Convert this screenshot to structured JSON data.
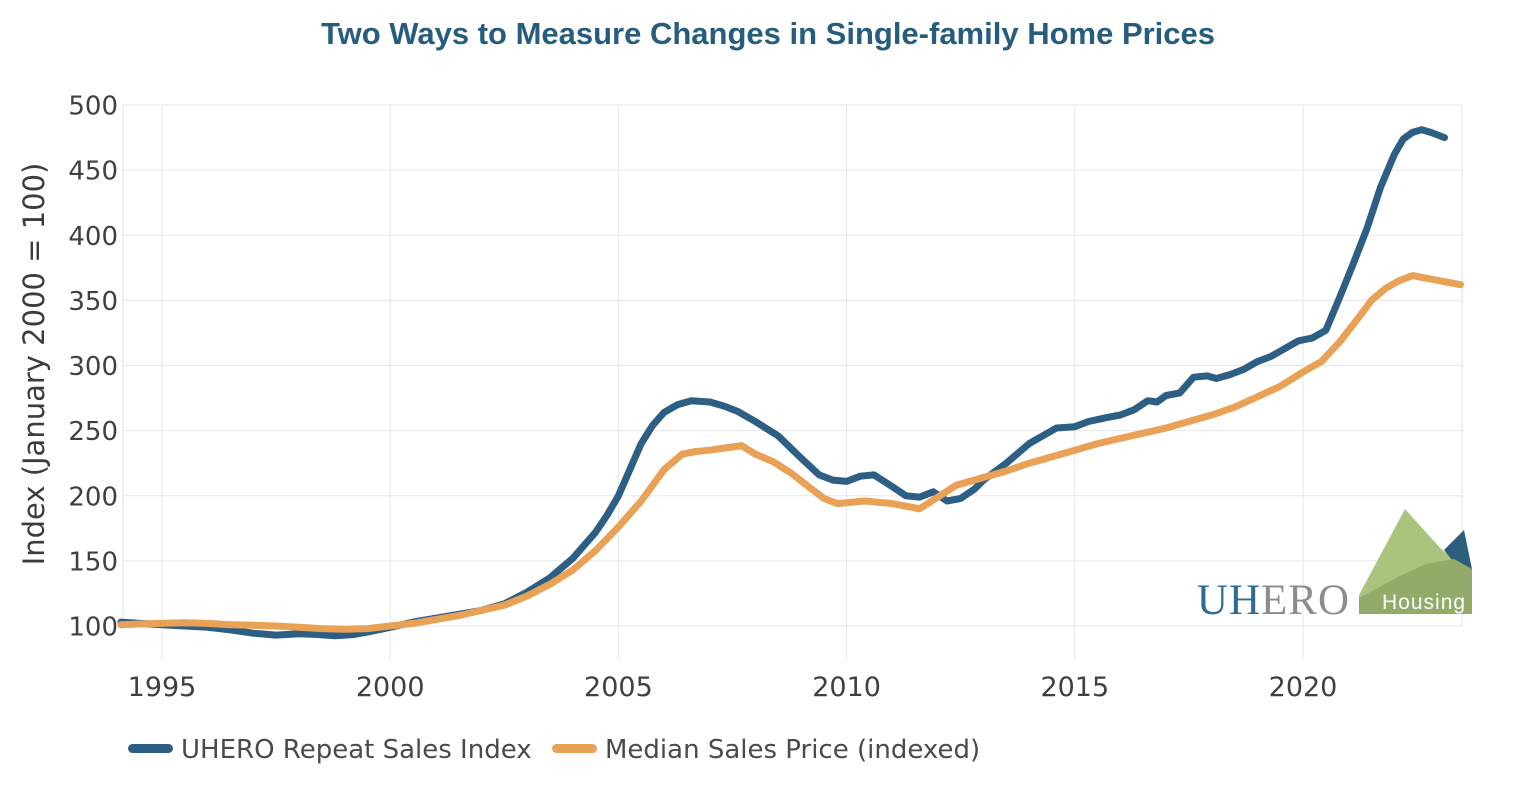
{
  "colors": {
    "title": "#265d7f",
    "repeat_sales_line": "#2d5f85",
    "median_price_line": "#e8a155"
  },
  "logo": {
    "wordmark_blue": "UH",
    "wordmark_gray": "ERO",
    "tag": "Housing",
    "colors": {
      "wordmark_blue": "#2f6b93",
      "wordmark_gray": "#8c8c8c",
      "light_green": "#aac47d",
      "sage_green": "#92ab68",
      "blue_peak": "#2e5e7f"
    }
  },
  "chart_data": {
    "type": "line",
    "title": "Two Ways to Measure Changes in Single-family Home Prices",
    "xlabel": "",
    "ylabel": "Index (January 2000 = 100)",
    "xlim": [
      1994.1,
      2023.6
    ],
    "ylim": [
      100,
      500
    ],
    "xticks": [
      1995,
      2000,
      2005,
      2010,
      2015,
      2020
    ],
    "yticks": [
      100,
      150,
      200,
      250,
      300,
      350,
      400,
      450,
      500
    ],
    "grid": true,
    "legend_position": "bottom-left",
    "series": [
      {
        "name": "UHERO Repeat Sales Index",
        "color": "#2d5f85",
        "points": [
          [
            1994.1,
            103
          ],
          [
            1994.5,
            102
          ],
          [
            1995.0,
            101
          ],
          [
            1995.5,
            100
          ],
          [
            1996.0,
            99
          ],
          [
            1996.5,
            97
          ],
          [
            1997.0,
            94.5
          ],
          [
            1997.5,
            93
          ],
          [
            1998.0,
            94
          ],
          [
            1998.4,
            93.5
          ],
          [
            1998.8,
            92.5
          ],
          [
            1999.2,
            93.5
          ],
          [
            1999.6,
            96
          ],
          [
            2000.0,
            99
          ],
          [
            2000.5,
            103
          ],
          [
            2001.0,
            106
          ],
          [
            2001.5,
            109
          ],
          [
            2002.0,
            112
          ],
          [
            2002.5,
            117
          ],
          [
            2003.0,
            126
          ],
          [
            2003.5,
            137
          ],
          [
            2004.0,
            152
          ],
          [
            2004.5,
            172
          ],
          [
            2004.75,
            185
          ],
          [
            2005.0,
            200
          ],
          [
            2005.25,
            220
          ],
          [
            2005.5,
            240
          ],
          [
            2005.75,
            254
          ],
          [
            2006.0,
            264
          ],
          [
            2006.3,
            270
          ],
          [
            2006.6,
            273
          ],
          [
            2007.0,
            272
          ],
          [
            2007.3,
            269
          ],
          [
            2007.6,
            265
          ],
          [
            2008.0,
            257
          ],
          [
            2008.5,
            246
          ],
          [
            2009.0,
            229
          ],
          [
            2009.4,
            216
          ],
          [
            2009.7,
            212
          ],
          [
            2010.0,
            211
          ],
          [
            2010.3,
            215
          ],
          [
            2010.6,
            216
          ],
          [
            2011.0,
            207
          ],
          [
            2011.3,
            200
          ],
          [
            2011.6,
            199
          ],
          [
            2011.9,
            203
          ],
          [
            2012.2,
            196
          ],
          [
            2012.5,
            198
          ],
          [
            2012.8,
            205
          ],
          [
            2013.0,
            212
          ],
          [
            2013.5,
            225
          ],
          [
            2014.0,
            240
          ],
          [
            2014.6,
            252
          ],
          [
            2015.0,
            253
          ],
          [
            2015.3,
            257
          ],
          [
            2015.7,
            260
          ],
          [
            2016.0,
            262
          ],
          [
            2016.3,
            266
          ],
          [
            2016.6,
            273
          ],
          [
            2016.8,
            272
          ],
          [
            2017.0,
            277
          ],
          [
            2017.3,
            279
          ],
          [
            2017.6,
            291
          ],
          [
            2017.9,
            292
          ],
          [
            2018.1,
            290
          ],
          [
            2018.4,
            293
          ],
          [
            2018.7,
            297
          ],
          [
            2019.0,
            303
          ],
          [
            2019.3,
            307
          ],
          [
            2019.6,
            313
          ],
          [
            2019.9,
            319
          ],
          [
            2020.2,
            321
          ],
          [
            2020.5,
            327
          ],
          [
            2020.8,
            352
          ],
          [
            2021.1,
            378
          ],
          [
            2021.4,
            405
          ],
          [
            2021.7,
            437
          ],
          [
            2022.0,
            462
          ],
          [
            2022.2,
            474
          ],
          [
            2022.4,
            479
          ],
          [
            2022.6,
            481
          ],
          [
            2022.8,
            479
          ],
          [
            2023.1,
            475
          ]
        ]
      },
      {
        "name": "Median Sales Price (indexed)",
        "color": "#e8a155",
        "points": [
          [
            1994.1,
            101
          ],
          [
            1994.5,
            101.5
          ],
          [
            1995.0,
            102
          ],
          [
            1995.5,
            102.5
          ],
          [
            1996.0,
            102
          ],
          [
            1996.5,
            101
          ],
          [
            1997.0,
            100.5
          ],
          [
            1997.5,
            100
          ],
          [
            1998.0,
            99
          ],
          [
            1998.5,
            98
          ],
          [
            1999.0,
            97.5
          ],
          [
            1999.5,
            98
          ],
          [
            2000.0,
            100
          ],
          [
            2000.5,
            102
          ],
          [
            2001.0,
            105
          ],
          [
            2001.5,
            108
          ],
          [
            2002.0,
            112
          ],
          [
            2002.5,
            116
          ],
          [
            2003.0,
            123
          ],
          [
            2003.5,
            132
          ],
          [
            2004.0,
            143
          ],
          [
            2004.5,
            158
          ],
          [
            2005.0,
            176
          ],
          [
            2005.5,
            196
          ],
          [
            2006.0,
            220
          ],
          [
            2006.4,
            232
          ],
          [
            2006.7,
            234
          ],
          [
            2007.0,
            235
          ],
          [
            2007.4,
            237
          ],
          [
            2007.7,
            238.5
          ],
          [
            2008.0,
            232
          ],
          [
            2008.4,
            226
          ],
          [
            2008.8,
            217
          ],
          [
            2009.2,
            206
          ],
          [
            2009.5,
            198
          ],
          [
            2009.8,
            194
          ],
          [
            2010.1,
            195
          ],
          [
            2010.4,
            196
          ],
          [
            2010.7,
            195
          ],
          [
            2011.0,
            194
          ],
          [
            2011.3,
            192
          ],
          [
            2011.6,
            190
          ],
          [
            2012.0,
            199
          ],
          [
            2012.4,
            208
          ],
          [
            2012.8,
            212
          ],
          [
            2013.0,
            214
          ],
          [
            2013.5,
            219
          ],
          [
            2014.0,
            225
          ],
          [
            2014.5,
            230
          ],
          [
            2015.0,
            235
          ],
          [
            2015.5,
            240
          ],
          [
            2016.0,
            244
          ],
          [
            2016.5,
            248
          ],
          [
            2017.0,
            252
          ],
          [
            2017.5,
            257
          ],
          [
            2018.0,
            262
          ],
          [
            2018.5,
            268
          ],
          [
            2019.0,
            276
          ],
          [
            2019.5,
            284
          ],
          [
            2020.0,
            295
          ],
          [
            2020.4,
            303
          ],
          [
            2020.8,
            318
          ],
          [
            2021.2,
            336
          ],
          [
            2021.5,
            350
          ],
          [
            2021.8,
            359
          ],
          [
            2022.1,
            365
          ],
          [
            2022.4,
            369
          ],
          [
            2022.7,
            367
          ],
          [
            2023.0,
            365
          ],
          [
            2023.45,
            362
          ]
        ]
      }
    ]
  }
}
